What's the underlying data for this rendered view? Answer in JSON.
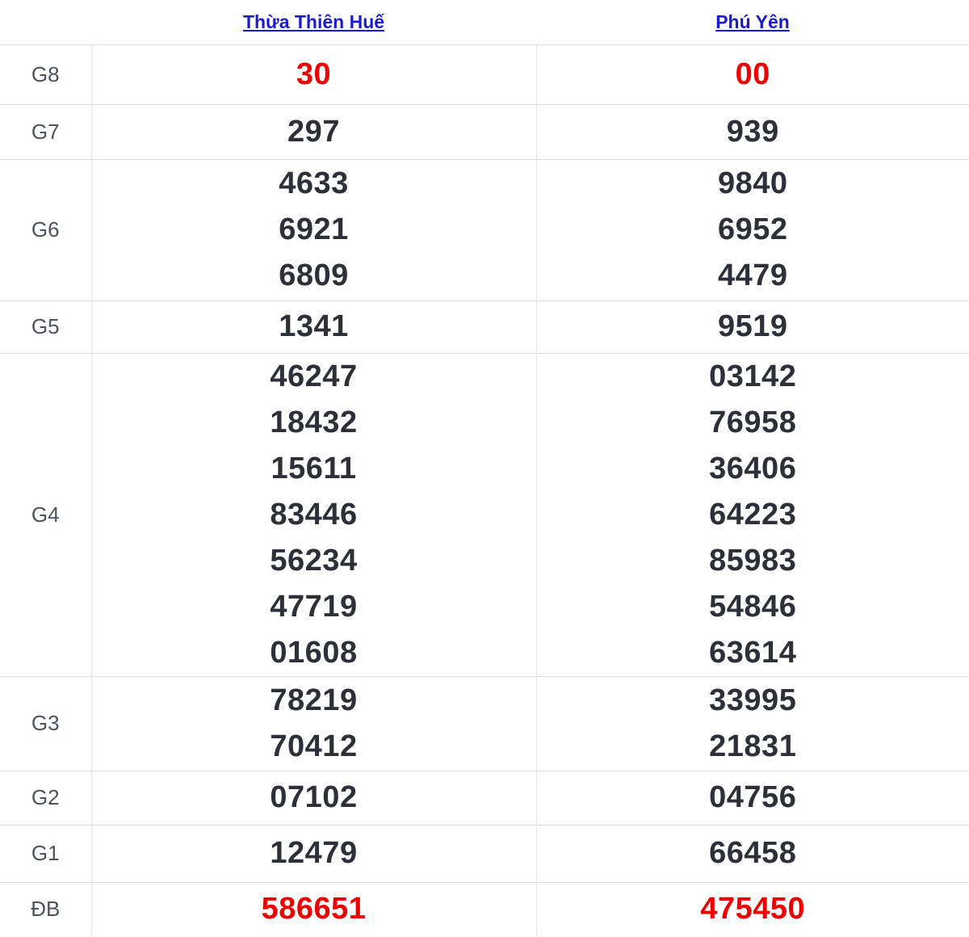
{
  "table": {
    "header": {
      "corner": "",
      "columns": [
        {
          "id": "hue",
          "label": "Thừa Thiên Huế"
        },
        {
          "id": "phuyen",
          "label": "Phú Yên"
        }
      ]
    },
    "rows": [
      {
        "id": "g8",
        "label": "G8",
        "highlight": true,
        "values": {
          "hue": [
            "30"
          ],
          "phuyen": [
            "00"
          ]
        }
      },
      {
        "id": "g7",
        "label": "G7",
        "highlight": false,
        "values": {
          "hue": [
            "297"
          ],
          "phuyen": [
            "939"
          ]
        }
      },
      {
        "id": "g6",
        "label": "G6",
        "highlight": false,
        "values": {
          "hue": [
            "4633",
            "6921",
            "6809"
          ],
          "phuyen": [
            "9840",
            "6952",
            "4479"
          ]
        }
      },
      {
        "id": "g5",
        "label": "G5",
        "highlight": false,
        "values": {
          "hue": [
            "1341"
          ],
          "phuyen": [
            "9519"
          ]
        }
      },
      {
        "id": "g4",
        "label": "G4",
        "highlight": false,
        "values": {
          "hue": [
            "46247",
            "18432",
            "15611",
            "83446",
            "56234",
            "47719",
            "01608"
          ],
          "phuyen": [
            "03142",
            "76958",
            "36406",
            "64223",
            "85983",
            "54846",
            "63614"
          ]
        }
      },
      {
        "id": "g3",
        "label": "G3",
        "highlight": false,
        "values": {
          "hue": [
            "78219",
            "70412"
          ],
          "phuyen": [
            "33995",
            "21831"
          ]
        }
      },
      {
        "id": "g2",
        "label": "G2",
        "highlight": false,
        "values": {
          "hue": [
            "07102"
          ],
          "phuyen": [
            "04756"
          ]
        }
      },
      {
        "id": "g1",
        "label": "G1",
        "highlight": false,
        "values": {
          "hue": [
            "12479"
          ],
          "phuyen": [
            "66458"
          ]
        }
      },
      {
        "id": "db",
        "label": "ĐB",
        "highlight": true,
        "values": {
          "hue": [
            "586651"
          ],
          "phuyen": [
            "475450"
          ]
        }
      }
    ]
  },
  "colors": {
    "link_blue": "#1b1bce",
    "highlight_red": "#ee0000",
    "number_dark": "#2d3038",
    "label_gray": "#4d535e",
    "border_gray": "#dcdcdc"
  }
}
